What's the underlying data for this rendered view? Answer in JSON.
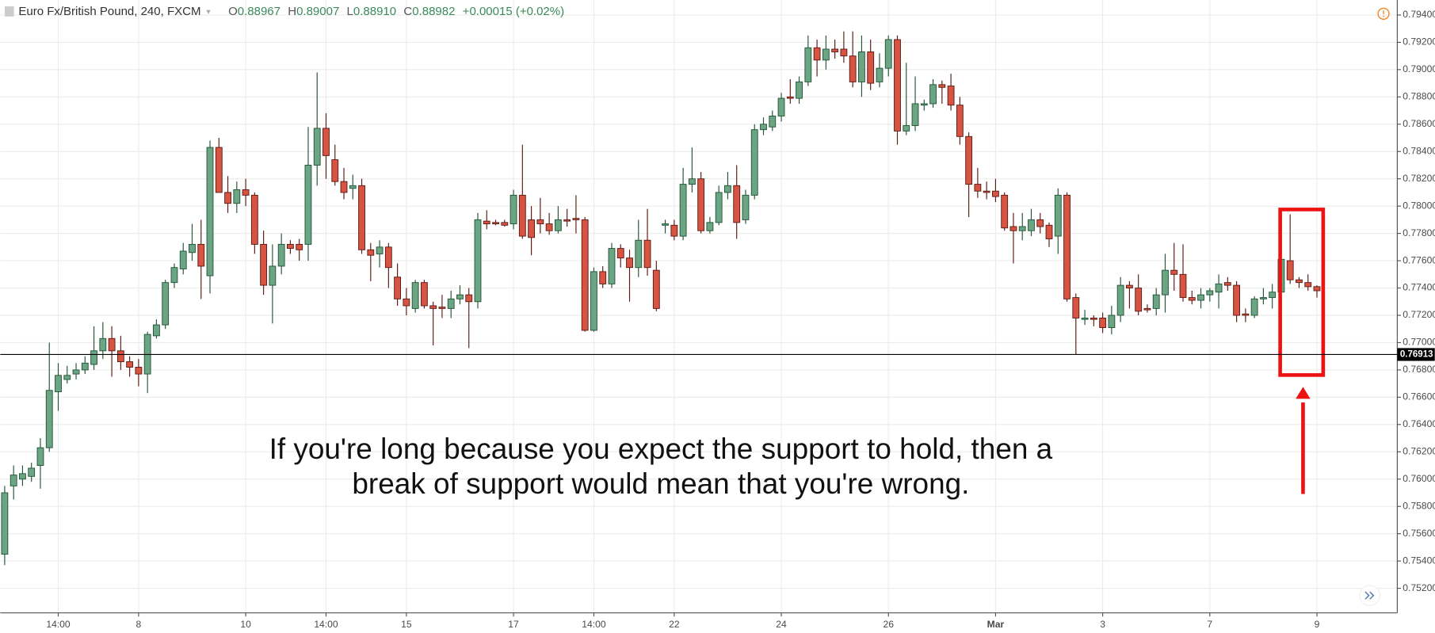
{
  "chart_data": {
    "type": "candlestick",
    "title": "Euro Fx/British Pound, 240, FXCM",
    "ohlc_header": [
      {
        "label": "O",
        "value": 0.88967
      },
      {
        "label": "H",
        "value": 0.89007
      },
      {
        "label": "L",
        "value": 0.8891
      },
      {
        "label": "C",
        "value": 0.88982
      }
    ],
    "ohlc_header_labels": [
      "0.88967",
      "0.89007",
      "0.88910",
      "0.88982"
    ],
    "change": "+0.00015 (+0.02%)",
    "up_color": "#6ba583",
    "down_color": "#d75442",
    "open": [
      0.7545,
      0.7595,
      0.76,
      0.7602,
      0.761,
      0.7623,
      0.7664,
      0.7673,
      0.7677,
      0.768,
      0.7684,
      0.7694,
      0.7703,
      0.7694,
      0.7686,
      0.7682,
      0.7677,
      0.7705,
      0.7713,
      0.7744,
      0.7754,
      0.7766,
      0.7772,
      0.7749,
      0.7843,
      0.781,
      0.7802,
      0.7812,
      0.7808,
      0.7772,
      0.7742,
      0.7756,
      0.7772,
      0.7772,
      0.7772,
      0.783,
      0.7857,
      0.7834,
      0.7818,
      0.7813,
      0.7815,
      0.7768,
      0.7765,
      0.777,
      0.7748,
      0.7732,
      0.7725,
      0.7744,
      0.7727,
      0.7726,
      0.7725,
      0.7732,
      0.7735,
      0.773,
      0.7789,
      0.7788,
      0.7788,
      0.7787,
      0.7808,
      0.779,
      0.779,
      0.7787,
      0.7782,
      0.779,
      0.7791,
      0.779,
      0.7709,
      0.7752,
      0.7743,
      0.7769,
      0.7762,
      0.7755,
      0.7775,
      0.7753,
      0.7786,
      0.7786,
      0.7778,
      0.7816,
      0.782,
      0.7782,
      0.7788,
      0.781,
      0.7815,
      0.779,
      0.7808,
      0.7856,
      0.7858,
      0.7866,
      0.788,
      0.7879,
      0.7891,
      0.7916,
      0.7907,
      0.7915,
      0.7915,
      0.791,
      0.7891,
      0.7913,
      0.7891,
      0.7901,
      0.7922,
      0.7855,
      0.7859,
      0.7874,
      0.7875,
      0.7889,
      0.7888,
      0.7874,
      0.7851,
      0.7816,
      0.7811,
      0.7811,
      0.7808,
      0.7785,
      0.7782,
      0.7782,
      0.779,
      0.7786,
      0.7778,
      0.7808,
      0.7733,
      0.7717,
      0.7718,
      0.7718,
      0.7711,
      0.772,
      0.7742,
      0.774,
      0.7725,
      0.7725,
      0.7735,
      0.7753,
      0.775,
      0.7733,
      0.7731,
      0.7735,
      0.7737,
      0.7744,
      0.7742,
      0.7721,
      0.772,
      0.7732,
      0.7733,
      0.7737,
      0.776,
      0.7746,
      0.7744,
      0.7741
    ],
    "high": [
      0.7595,
      0.761,
      0.761,
      0.7612,
      0.763,
      0.77,
      0.7685,
      0.7683,
      0.7685,
      0.769,
      0.7712,
      0.7715,
      0.7712,
      0.7705,
      0.769,
      0.7688,
      0.7708,
      0.7717,
      0.7746,
      0.7758,
      0.7773,
      0.7787,
      0.779,
      0.7848,
      0.785,
      0.7822,
      0.7818,
      0.782,
      0.781,
      0.7782,
      0.7772,
      0.778,
      0.7775,
      0.7776,
      0.7858,
      0.7898,
      0.7868,
      0.7845,
      0.7828,
      0.7823,
      0.782,
      0.7773,
      0.7775,
      0.7773,
      0.7758,
      0.774,
      0.7746,
      0.7746,
      0.773,
      0.7735,
      0.7738,
      0.7742,
      0.774,
      0.7795,
      0.7797,
      0.779,
      0.779,
      0.7812,
      0.7845,
      0.78,
      0.7806,
      0.7795,
      0.78,
      0.7798,
      0.7808,
      0.7792,
      0.7755,
      0.7756,
      0.7773,
      0.7772,
      0.7768,
      0.779,
      0.7798,
      0.776,
      0.779,
      0.779,
      0.7828,
      0.7843,
      0.7825,
      0.7792,
      0.7815,
      0.7825,
      0.783,
      0.7812,
      0.786,
      0.7865,
      0.787,
      0.7883,
      0.7893,
      0.7895,
      0.7925,
      0.7922,
      0.7925,
      0.7922,
      0.7928,
      0.7928,
      0.7925,
      0.7922,
      0.7912,
      0.7925,
      0.7925,
      0.7905,
      0.7895,
      0.7878,
      0.7893,
      0.7892,
      0.7897,
      0.788,
      0.7854,
      0.7828,
      0.7818,
      0.782,
      0.781,
      0.7795,
      0.7795,
      0.7798,
      0.7795,
      0.7788,
      0.7813,
      0.781,
      0.7736,
      0.7724,
      0.772,
      0.7722,
      0.7727,
      0.7748,
      0.7745,
      0.775,
      0.7728,
      0.774,
      0.7765,
      0.7773,
      0.7772,
      0.7738,
      0.774,
      0.774,
      0.775,
      0.7748,
      0.7745,
      0.7725,
      0.7734,
      0.774,
      0.7743,
      0.7765,
      0.7794,
      0.7748,
      0.775,
      0.7742
    ],
    "low": [
      0.7537,
      0.7585,
      0.7595,
      0.7598,
      0.7593,
      0.762,
      0.765,
      0.767,
      0.7673,
      0.7677,
      0.768,
      0.7688,
      0.7675,
      0.768,
      0.7675,
      0.7668,
      0.7663,
      0.7703,
      0.771,
      0.774,
      0.775,
      0.776,
      0.7732,
      0.7736,
      0.781,
      0.7795,
      0.7795,
      0.78,
      0.7765,
      0.7735,
      0.7714,
      0.775,
      0.7765,
      0.776,
      0.776,
      0.7815,
      0.782,
      0.7815,
      0.7805,
      0.7805,
      0.7765,
      0.7745,
      0.7755,
      0.774,
      0.7727,
      0.772,
      0.7722,
      0.7725,
      0.7698,
      0.7718,
      0.7718,
      0.7728,
      0.7696,
      0.7725,
      0.7783,
      0.7786,
      0.7785,
      0.7783,
      0.7776,
      0.7764,
      0.778,
      0.7779,
      0.778,
      0.7785,
      0.778,
      0.7708,
      0.7708,
      0.774,
      0.774,
      0.7755,
      0.773,
      0.7748,
      0.7749,
      0.7723,
      0.778,
      0.7775,
      0.7775,
      0.781,
      0.778,
      0.778,
      0.7786,
      0.7805,
      0.7776,
      0.7787,
      0.7805,
      0.7852,
      0.7855,
      0.7862,
      0.7875,
      0.7875,
      0.7888,
      0.7895,
      0.79,
      0.7908,
      0.7905,
      0.7887,
      0.788,
      0.7885,
      0.7887,
      0.7895,
      0.7845,
      0.7852,
      0.7855,
      0.787,
      0.7872,
      0.7875,
      0.787,
      0.7845,
      0.7792,
      0.7806,
      0.7805,
      0.7803,
      0.7782,
      0.7758,
      0.7775,
      0.7778,
      0.778,
      0.777,
      0.7765,
      0.773,
      0.7691,
      0.7713,
      0.7712,
      0.7707,
      0.7706,
      0.7715,
      0.7725,
      0.772,
      0.7722,
      0.772,
      0.7722,
      0.7738,
      0.773,
      0.7728,
      0.7725,
      0.773,
      0.7725,
      0.7738,
      0.7715,
      0.7715,
      0.7718,
      0.7728,
      0.7725,
      0.7735,
      0.7743,
      0.774,
      0.7738,
      0.7733
    ],
    "close": [
      0.759,
      0.7603,
      0.7604,
      0.7608,
      0.7623,
      0.7665,
      0.7676,
      0.7676,
      0.768,
      0.7685,
      0.7694,
      0.7703,
      0.7694,
      0.7686,
      0.7682,
      0.7677,
      0.7706,
      0.7713,
      0.7744,
      0.7755,
      0.7767,
      0.7772,
      0.7756,
      0.7843,
      0.781,
      0.7802,
      0.7812,
      0.7808,
      0.7772,
      0.7742,
      0.7756,
      0.7772,
      0.7769,
      0.7768,
      0.783,
      0.7857,
      0.7837,
      0.7818,
      0.781,
      0.7815,
      0.7768,
      0.7764,
      0.777,
      0.7755,
      0.7732,
      0.7727,
      0.7744,
      0.7727,
      0.7725,
      0.7725,
      0.7732,
      0.7735,
      0.773,
      0.779,
      0.7787,
      0.7787,
      0.7786,
      0.7808,
      0.7778,
      0.7777,
      0.7787,
      0.7782,
      0.779,
      0.7789,
      0.779,
      0.7709,
      0.7752,
      0.7743,
      0.7769,
      0.7762,
      0.7755,
      0.7775,
      0.7755,
      0.7725,
      0.7787,
      0.7778,
      0.7816,
      0.782,
      0.7782,
      0.7788,
      0.781,
      0.7815,
      0.7788,
      0.7808,
      0.7856,
      0.786,
      0.7866,
      0.7879,
      0.7879,
      0.7891,
      0.7916,
      0.7907,
      0.7915,
      0.7913,
      0.791,
      0.7891,
      0.7913,
      0.789,
      0.7901,
      0.7922,
      0.7855,
      0.7859,
      0.7875,
      0.7875,
      0.7889,
      0.7887,
      0.7874,
      0.7851,
      0.7816,
      0.7811,
      0.781,
      0.7807,
      0.7784,
      0.7782,
      0.7785,
      0.779,
      0.7785,
      0.7776,
      0.7808,
      0.7732,
      0.7718,
      0.7718,
      0.7717,
      0.7711,
      0.772,
      0.7742,
      0.774,
      0.7723,
      0.7724,
      0.7735,
      0.7753,
      0.775,
      0.7733,
      0.7731,
      0.7735,
      0.7738,
      0.7743,
      0.7742,
      0.772,
      0.772,
      0.7732,
      0.7733,
      0.7737,
      0.7761,
      0.7746,
      0.7744,
      0.7741,
      0.7738
    ],
    "xlim": [
      -0.5,
      156
    ],
    "xticks": [
      {
        "value": 6,
        "label": "14:00"
      },
      {
        "value": 15,
        "label": "8"
      },
      {
        "value": 27,
        "label": "10"
      },
      {
        "value": 36,
        "label": "14:00"
      },
      {
        "value": 45,
        "label": "15"
      },
      {
        "value": 57,
        "label": "17"
      },
      {
        "value": 66,
        "label": "14:00"
      },
      {
        "value": 75,
        "label": "22"
      },
      {
        "value": 87,
        "label": "24"
      },
      {
        "value": 99,
        "label": "26"
      },
      {
        "value": 111,
        "label": "Mar"
      },
      {
        "value": 123,
        "label": "3"
      },
      {
        "value": 135,
        "label": "7"
      },
      {
        "value": 147,
        "label": "9"
      }
    ],
    "ylim": [
      0.7502,
      0.7951
    ],
    "yticks": [
      {
        "value": 0.752,
        "label": "0.75200"
      },
      {
        "value": 0.754,
        "label": "0.75400"
      },
      {
        "value": 0.756,
        "label": "0.75600"
      },
      {
        "value": 0.758,
        "label": "0.75800"
      },
      {
        "value": 0.76,
        "label": "0.76000"
      },
      {
        "value": 0.762,
        "label": "0.76200"
      },
      {
        "value": 0.764,
        "label": "0.76400"
      },
      {
        "value": 0.766,
        "label": "0.76600"
      },
      {
        "value": 0.768,
        "label": "0.76800"
      },
      {
        "value": 0.77,
        "label": "0.77000"
      },
      {
        "value": 0.772,
        "label": "0.77200"
      },
      {
        "value": 0.774,
        "label": "0.77400"
      },
      {
        "value": 0.776,
        "label": "0.77600"
      },
      {
        "value": 0.778,
        "label": "0.77800"
      },
      {
        "value": 0.78,
        "label": "0.78000"
      },
      {
        "value": 0.782,
        "label": "0.78200"
      },
      {
        "value": 0.784,
        "label": "0.78400"
      },
      {
        "value": 0.786,
        "label": "0.78600"
      },
      {
        "value": 0.788,
        "label": "0.78800"
      },
      {
        "value": 0.79,
        "label": "0.79000"
      },
      {
        "value": 0.792,
        "label": "0.79200"
      },
      {
        "value": 0.794,
        "label": "0.79400"
      }
    ],
    "grid": true,
    "support_line": {
      "value": 0.76913,
      "label": "0.76913"
    },
    "annotation": [
      "If you're long because you expect the support to hold, then a",
      "break of support would mean that you're wrong."
    ]
  }
}
